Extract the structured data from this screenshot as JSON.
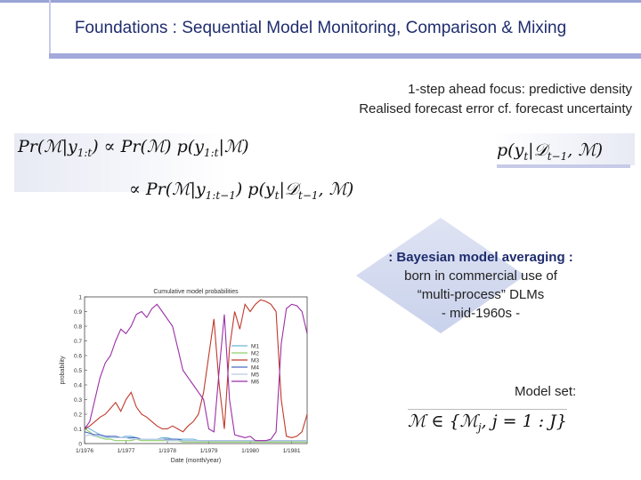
{
  "slide": {
    "title": "Foundations : Sequential Model Monitoring, Comparison & Mixing",
    "focus_line1": "1-step ahead focus: predictive density",
    "focus_line2": "Realised forecast error cf. forecast uncertainty",
    "bma_heading": ": Bayesian model averaging :",
    "bma_line1": "born in commercial use of",
    "bma_line2": "“multi-process” DLMs",
    "bma_line3": "- mid-1960s -",
    "model_set_label": "Model set:"
  },
  "equations": {
    "eq1_lhs": "Pr(ℳ|y",
    "eq1_lhs_sub": "1:t",
    "eq1_rhs": ") ∝ Pr(ℳ) p(y",
    "eq1_rhs_sub": "1:t",
    "eq1_end": "|ℳ)",
    "eq2_a": "∝  Pr(ℳ|y",
    "eq2_a_sub": "1:t−1",
    "eq2_b": ") p(y",
    "eq2_b_sub": "t",
    "eq2_c": "|𝒟",
    "eq2_c_sub": "t−1",
    "eq2_d": ", ℳ)",
    "eq3_a": "p(y",
    "eq3_a_sub": "t",
    "eq3_b": "|𝒟",
    "eq3_b_sub": "t−1",
    "eq3_c": ", ℳ)",
    "eq4": "ℳ ∈ {ℳ",
    "eq4_sub": "j",
    "eq4_end": ",  j = 1 : J}"
  },
  "chart_data": {
    "type": "line",
    "title": "Cumulative model probabilities",
    "xlabel": "Date (month/year)",
    "ylabel": "probability",
    "ylim": [
      0,
      1
    ],
    "yticks": [
      "0",
      "0.1",
      "0.2",
      "0.3",
      "0.4",
      "0.5",
      "0.6",
      "0.7",
      "0.8",
      "0.9",
      "1"
    ],
    "xticks": [
      "1/1976",
      "1/1977",
      "1/1978",
      "1/1979",
      "1/1980",
      "1/1981"
    ],
    "x": [
      0,
      2,
      4,
      6,
      8,
      10,
      12,
      14,
      16,
      18,
      20,
      22,
      24,
      26,
      28,
      30,
      32,
      34,
      36,
      38,
      40,
      42,
      44,
      46,
      48,
      50,
      52,
      54,
      56,
      58,
      60,
      62,
      64,
      66,
      68,
      70,
      72,
      74,
      76,
      78,
      80,
      82,
      84,
      86
    ],
    "legend_position": "right-middle",
    "series": [
      {
        "name": "M1",
        "color": "#6fb7d9",
        "values": [
          0.12,
          0.1,
          0.08,
          0.06,
          0.05,
          0.04,
          0.04,
          0.04,
          0.05,
          0.05,
          0.04,
          0.03,
          0.03,
          0.03,
          0.03,
          0.04,
          0.04,
          0.03,
          0.03,
          0.03,
          0.03,
          0.03,
          0.02,
          0.02,
          0.02,
          0.02,
          0.02,
          0.02,
          0.02,
          0.02,
          0.02,
          0.02,
          0.02,
          0.02,
          0.02,
          0.02,
          0.02,
          0.02,
          0.02,
          0.02,
          0.02,
          0.02,
          0.02,
          0.02
        ]
      },
      {
        "name": "M2",
        "color": "#8fcf6a",
        "values": [
          0.1,
          0.08,
          0.05,
          0.04,
          0.03,
          0.03,
          0.02,
          0.02,
          0.02,
          0.02,
          0.03,
          0.02,
          0.02,
          0.02,
          0.02,
          0.02,
          0.02,
          0.02,
          0.02,
          0.01,
          0.01,
          0.01,
          0.01,
          0.01,
          0.01,
          0.01,
          0.01,
          0.01,
          0.01,
          0.01,
          0.01,
          0.01,
          0.01,
          0.01,
          0.01,
          0.01,
          0.01,
          0.01,
          0.01,
          0.01,
          0.01,
          0.01,
          0.01,
          0.01
        ]
      },
      {
        "name": "M3",
        "color": "#c0392b",
        "values": [
          0.1,
          0.12,
          0.15,
          0.18,
          0.2,
          0.24,
          0.28,
          0.22,
          0.3,
          0.35,
          0.25,
          0.2,
          0.18,
          0.15,
          0.12,
          0.1,
          0.1,
          0.12,
          0.1,
          0.08,
          0.12,
          0.15,
          0.2,
          0.35,
          0.6,
          0.85,
          0.4,
          0.1,
          0.65,
          0.9,
          0.78,
          0.95,
          0.9,
          0.95,
          0.98,
          0.97,
          0.95,
          0.9,
          0.3,
          0.05,
          0.04,
          0.05,
          0.08,
          0.2
        ]
      },
      {
        "name": "M4",
        "color": "#4b6cc1",
        "values": [
          0.08,
          0.07,
          0.06,
          0.06,
          0.05,
          0.05,
          0.05,
          0.04,
          0.04,
          0.04,
          0.04,
          0.03,
          0.03,
          0.03,
          0.03,
          0.03,
          0.03,
          0.03,
          0.03,
          0.02,
          0.02,
          0.02,
          0.02,
          0.02,
          0.02,
          0.02,
          0.02,
          0.02,
          0.02,
          0.02,
          0.02,
          0.02,
          0.02,
          0.02,
          0.02,
          0.02,
          0.02,
          0.02,
          0.02,
          0.02,
          0.02,
          0.02,
          0.02,
          0.02
        ]
      },
      {
        "name": "M5",
        "color": "#b7cbe6",
        "values": [
          0.05,
          0.06,
          0.05,
          0.05,
          0.04,
          0.04,
          0.04,
          0.04,
          0.04,
          0.03,
          0.03,
          0.03,
          0.03,
          0.03,
          0.03,
          0.03,
          0.02,
          0.02,
          0.02,
          0.02,
          0.02,
          0.02,
          0.02,
          0.02,
          0.02,
          0.02,
          0.02,
          0.02,
          0.02,
          0.02,
          0.02,
          0.02,
          0.02,
          0.02,
          0.02,
          0.02,
          0.02,
          0.02,
          0.02,
          0.02,
          0.02,
          0.02,
          0.02,
          0.02
        ]
      },
      {
        "name": "M6",
        "color": "#9b2fa8",
        "values": [
          0.1,
          0.15,
          0.3,
          0.45,
          0.55,
          0.6,
          0.7,
          0.78,
          0.75,
          0.8,
          0.88,
          0.9,
          0.86,
          0.92,
          0.95,
          0.9,
          0.85,
          0.8,
          0.65,
          0.5,
          0.45,
          0.4,
          0.35,
          0.3,
          0.1,
          0.08,
          0.5,
          0.88,
          0.3,
          0.06,
          0.05,
          0.04,
          0.05,
          0.02,
          0.02,
          0.02,
          0.03,
          0.08,
          0.68,
          0.92,
          0.95,
          0.94,
          0.9,
          0.75
        ]
      }
    ]
  }
}
